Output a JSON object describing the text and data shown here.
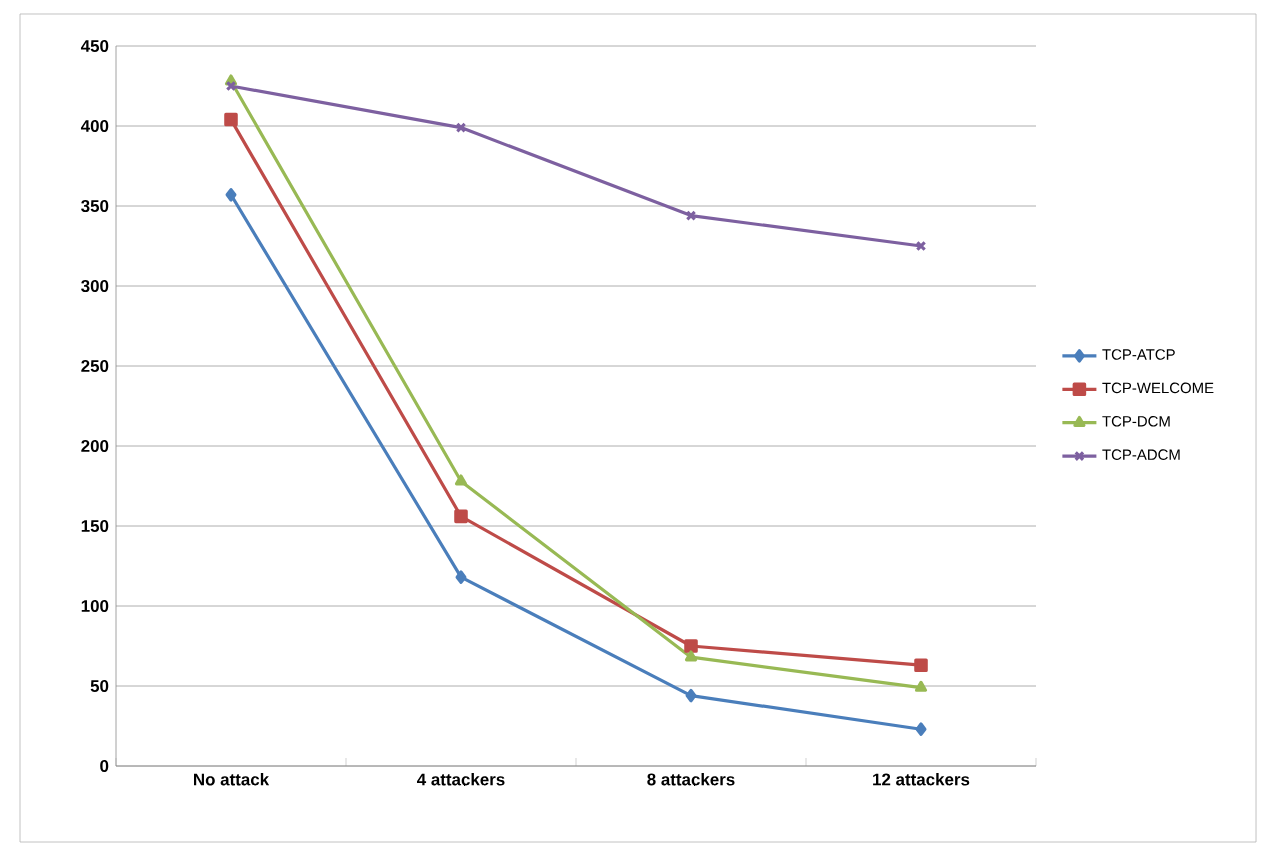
{
  "chart_data": {
    "type": "line",
    "categories": [
      "No attack",
      "4 attackers",
      "8 attackers",
      "12 attackers"
    ],
    "series": [
      {
        "name": "TCP-ATCP",
        "color": "#4a7ebb",
        "marker": "diamond",
        "values": [
          357,
          118,
          44,
          23
        ]
      },
      {
        "name": "TCP-WELCOME",
        "color": "#be4b48",
        "marker": "square",
        "values": [
          404,
          156,
          75,
          63
        ]
      },
      {
        "name": "TCP-DCM",
        "color": "#98b954",
        "marker": "triangle",
        "values": [
          428,
          178,
          68,
          49
        ]
      },
      {
        "name": "TCP-ADCM",
        "color": "#7d60a0",
        "marker": "cross",
        "values": [
          425,
          399,
          344,
          325
        ]
      }
    ],
    "ylim": [
      0,
      450
    ],
    "yticks": [
      0,
      50,
      100,
      150,
      200,
      250,
      300,
      350,
      400,
      450
    ],
    "grid": "y",
    "legend": "right",
    "line_style": "solid"
  }
}
